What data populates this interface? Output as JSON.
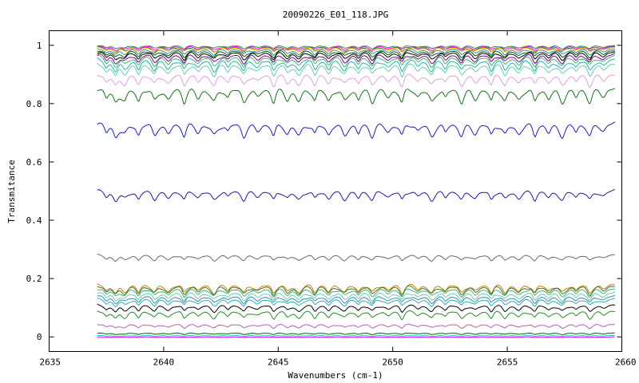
{
  "chart_data": {
    "type": "line",
    "title": "20090226_E01_118.JPG",
    "xlabel": "Wavenumbers (cm-1)",
    "ylabel": "Transmitance",
    "xlim": [
      2635,
      2660
    ],
    "ylim": [
      -0.05,
      1.05
    ],
    "x_ticks": [
      2635,
      2640,
      2645,
      2650,
      2655,
      2660
    ],
    "y_ticks": [
      0,
      0.2,
      0.4,
      0.6,
      0.8,
      1
    ],
    "x_tick_labels": [
      "2635",
      "2640",
      "2645",
      "2650",
      "2655",
      "2660"
    ],
    "y_tick_labels": [
      "0",
      "0.2",
      "0.4",
      "0.6",
      "0.8",
      "1"
    ],
    "x_range_of_data": [
      2637.1,
      2659.7
    ],
    "grid": false,
    "legend": "none",
    "absorption_lines_cm1": [
      2637.5,
      2637.9,
      2638.3,
      2638.9,
      2639.6,
      2640.2,
      2640.9,
      2641.5,
      2642.2,
      2642.8,
      2643.5,
      2644.1,
      2644.8,
      2645.4,
      2645.9,
      2646.6,
      2647.2,
      2647.9,
      2648.5,
      2649.1,
      2649.8,
      2650.4,
      2651.1,
      2651.7,
      2652.3,
      2653.0,
      2653.6,
      2654.3,
      2654.9,
      2655.5,
      2656.2,
      2656.8,
      2657.4,
      2658.0,
      2658.6,
      2659.2
    ],
    "series": [
      {
        "color": "#2e8b57",
        "baseline": 1.0,
        "depth": 0.015
      },
      {
        "color": "#ff00ff",
        "baseline": 0.998,
        "depth": 0.02
      },
      {
        "color": "#228b22",
        "baseline": 0.996,
        "depth": 0.025
      },
      {
        "color": "#ffa500",
        "baseline": 0.994,
        "depth": 0.022
      },
      {
        "color": "#4682b4",
        "baseline": 0.99,
        "depth": 0.03
      },
      {
        "color": "#006400",
        "baseline": 0.985,
        "depth": 0.035
      },
      {
        "color": "#000000",
        "baseline": 0.98,
        "depth": 0.04
      },
      {
        "color": "#8b008b",
        "baseline": 0.972,
        "depth": 0.045
      },
      {
        "color": "#3cb371",
        "baseline": 0.965,
        "depth": 0.05
      },
      {
        "color": "#20b2aa",
        "baseline": 0.955,
        "depth": 0.06
      },
      {
        "color": "#66cdaa",
        "baseline": 0.94,
        "depth": 0.06
      },
      {
        "color": "#dda0dd",
        "baseline": 0.905,
        "depth": 0.06
      },
      {
        "color": "#1a6e1a",
        "baseline": 0.858,
        "depth": 0.075
      },
      {
        "color": "#1c1cb8",
        "baseline": 0.738,
        "depth": 0.07
      },
      {
        "color": "#1c1c9c",
        "baseline": 0.505,
        "depth": 0.05
      },
      {
        "color": "#7b5b7b",
        "baseline": 0.283,
        "depth": 0.03
      },
      {
        "color": "#b8860b",
        "baseline": 0.183,
        "depth": 0.045
      },
      {
        "color": "#556b2f",
        "baseline": 0.178,
        "depth": 0.045
      },
      {
        "color": "#3cb371",
        "baseline": 0.168,
        "depth": 0.04
      },
      {
        "color": "#66cdaa",
        "baseline": 0.155,
        "depth": 0.04
      },
      {
        "color": "#4682b4",
        "baseline": 0.142,
        "depth": 0.035
      },
      {
        "color": "#20b2aa",
        "baseline": 0.132,
        "depth": 0.035
      },
      {
        "color": "#000000",
        "baseline": 0.112,
        "depth": 0.035
      },
      {
        "color": "#228b22",
        "baseline": 0.092,
        "depth": 0.04
      },
      {
        "color": "#b05fb0",
        "baseline": 0.045,
        "depth": 0.02
      },
      {
        "color": "#006400",
        "baseline": 0.014,
        "depth": 0.008
      },
      {
        "color": "#00ced1",
        "baseline": 0.005,
        "depth": 0.004
      },
      {
        "color": "#ff00ff",
        "baseline": 0.0,
        "depth": 0.002
      }
    ]
  }
}
